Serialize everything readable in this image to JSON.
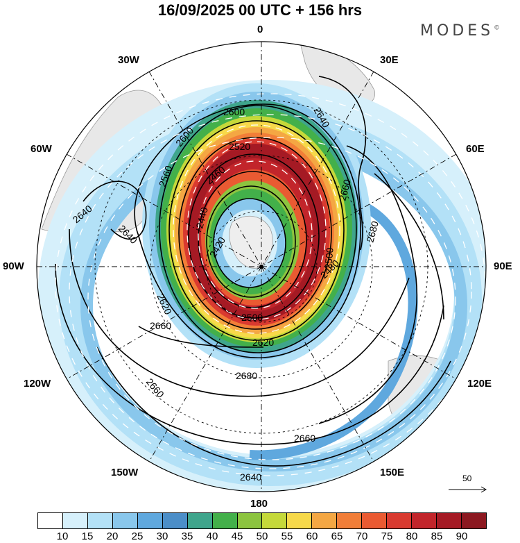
{
  "title": "16/09/2025  00 UTC  + 156 hrs",
  "brand": "MODES",
  "brand_mark": "©",
  "longitude_labels": {
    "top": "0",
    "right": "90E",
    "bottom": "180",
    "left": "90W",
    "ne": "30E",
    "ene": "60E",
    "ese": "120E",
    "se": "150E",
    "nw": "30W",
    "wnw": "60W",
    "wsw": "120W",
    "sw": "150W"
  },
  "contour_labels": [
    {
      "id": "c2600",
      "text": "2600"
    },
    {
      "id": "c2520",
      "text": "2520"
    },
    {
      "id": "c2460",
      "text": "2460"
    },
    {
      "id": "c2440",
      "text": "2440"
    },
    {
      "id": "c2420",
      "text": "2420"
    },
    {
      "id": "c2500",
      "text": "2500"
    },
    {
      "id": "c2620",
      "text": "2620"
    },
    {
      "id": "c2640a",
      "text": "2640"
    },
    {
      "id": "c2640b",
      "text": "2640"
    },
    {
      "id": "c2640c",
      "text": "2640"
    },
    {
      "id": "c2640d",
      "text": "2640"
    },
    {
      "id": "c2660a",
      "text": "2660"
    },
    {
      "id": "c2660b",
      "text": "2660"
    },
    {
      "id": "c2660c",
      "text": "2660"
    },
    {
      "id": "c2660d",
      "text": "2660"
    },
    {
      "id": "c2680a",
      "text": "2680"
    },
    {
      "id": "c2680b",
      "text": "2680"
    },
    {
      "id": "c2560",
      "text": "2560"
    },
    {
      "id": "c2600b",
      "text": "2600"
    },
    {
      "id": "c2480",
      "text": "2480"
    },
    {
      "id": "c2500b",
      "text": "2500"
    },
    {
      "id": "c2620b",
      "text": "2620"
    }
  ],
  "colorbar": {
    "colors": [
      "#ffffff",
      "#d6f0fb",
      "#b3e1f7",
      "#89c7ec",
      "#5fa8de",
      "#4b8ec8",
      "#3fa58c",
      "#43b04a",
      "#8cc43f",
      "#c5d93a",
      "#f7d94a",
      "#f4a743",
      "#f27e38",
      "#ea5a32",
      "#d93a30",
      "#c2252b",
      "#a51a24",
      "#8c1820"
    ],
    "ticks": [
      "10",
      "15",
      "20",
      "25",
      "30",
      "35",
      "40",
      "45",
      "50",
      "55",
      "60",
      "65",
      "70",
      "75",
      "80",
      "85",
      "90"
    ]
  },
  "reference_vector": "50"
}
